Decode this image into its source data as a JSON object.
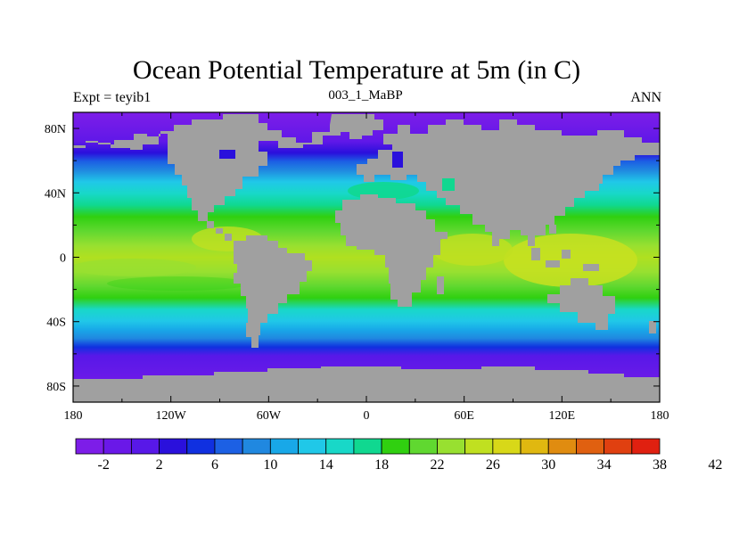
{
  "title": "Ocean Potential Temperature at 5m (in C)",
  "left_string": "Expt = teyib1",
  "center_string": "003_1_MaBP",
  "right_string": "ANN",
  "colors": {
    "land": "#a0a0a0",
    "ramp": [
      "#7d1de8",
      "#6a18e8",
      "#5818e8",
      "#2a10dc",
      "#1030e0",
      "#1c60e4",
      "#2088e0",
      "#18a8e8",
      "#20c8e8",
      "#18d8c8",
      "#10d890",
      "#30d010",
      "#60d830",
      "#98e030",
      "#c0e020",
      "#d8d818",
      "#e0b810",
      "#e08c10",
      "#e06010",
      "#e04010",
      "#e02010"
    ]
  },
  "axes": {
    "x_ticks": [
      "180",
      "120W",
      "60W",
      "0",
      "60E",
      "120E",
      "180"
    ],
    "y_ticks": [
      "80N",
      "40N",
      "0",
      "40S",
      "80S"
    ]
  },
  "colorbar": {
    "labels": [
      "-2",
      "2",
      "6",
      "10",
      "14",
      "18",
      "22",
      "26",
      "30",
      "34",
      "38",
      "42"
    ]
  }
}
